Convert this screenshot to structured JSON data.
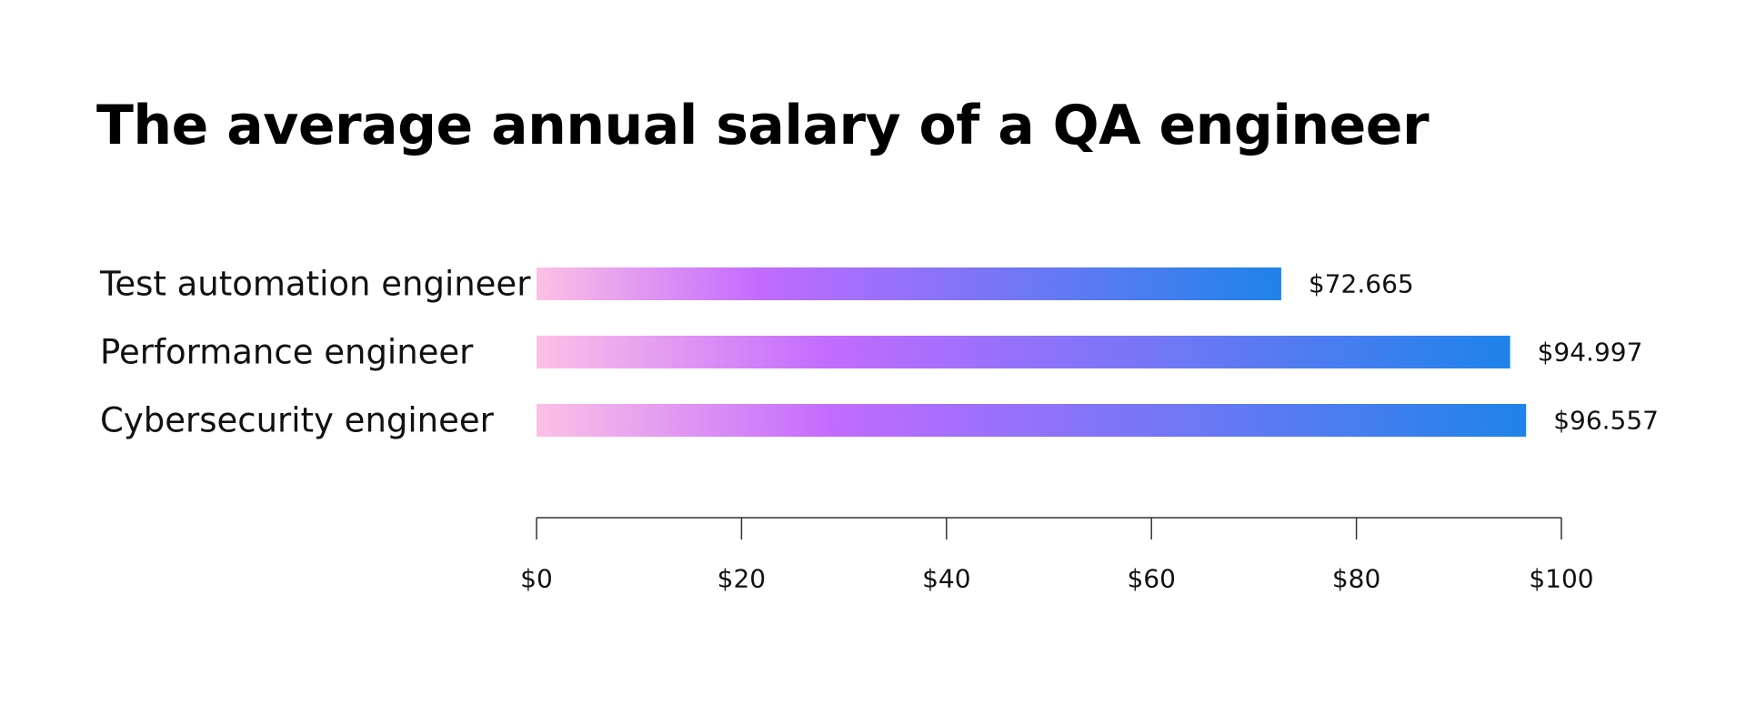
{
  "chart_data": {
    "type": "bar",
    "orientation": "horizontal",
    "title": "The average annual salary of a QA engineer",
    "categories": [
      "Test automation engineer",
      "Performance engineer",
      "Cybersecurity engineer"
    ],
    "values": [
      72.665,
      94.997,
      96.557
    ],
    "value_labels": [
      "$72.665",
      "$94.997",
      "$96.557"
    ],
    "xlim": [
      0,
      100
    ],
    "x_ticks": [
      0,
      20,
      40,
      60,
      80,
      100
    ],
    "x_tick_labels": [
      "$0",
      "$20",
      "$40",
      "$60",
      "$80",
      "$100"
    ],
    "grid": false,
    "legend": "none",
    "bar_gradient": [
      "#fdc0e6",
      "#c26bff",
      "#1e83ea"
    ]
  }
}
